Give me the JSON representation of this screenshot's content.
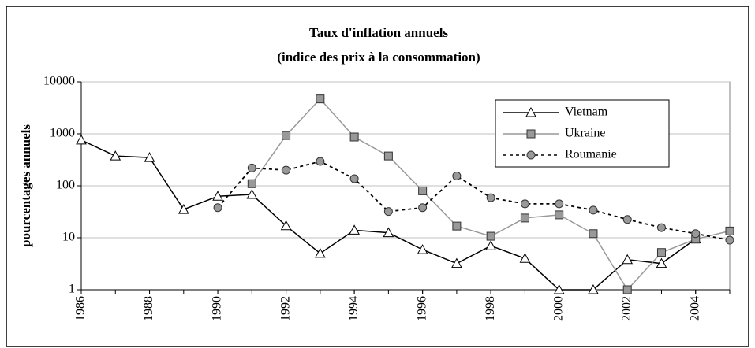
{
  "chart_data": {
    "type": "line",
    "title": "Taux d'inflation annuels",
    "subtitle": "(indice des prix à la consommation)",
    "y_label": "pourcentages annuels",
    "x": [
      1986,
      1987,
      1988,
      1989,
      1990,
      1991,
      1992,
      1993,
      1994,
      1995,
      1996,
      1997,
      1998,
      1999,
      2000,
      2001,
      2002,
      2003,
      2004,
      2005
    ],
    "series": [
      {
        "name": "Vietnam",
        "color": "#000000",
        "marker": "triangle",
        "dashed": false,
        "values": [
          760,
          375,
          350,
          35,
          63,
          68,
          17,
          5,
          14,
          12.5,
          5.9,
          3.2,
          7,
          4,
          1,
          1,
          3.8,
          3.2,
          9.5,
          null
        ]
      },
      {
        "name": "Ukraine",
        "color": "#999999",
        "marker": "square",
        "dashed": false,
        "values": [
          null,
          null,
          null,
          null,
          null,
          110,
          930,
          4700,
          870,
          375,
          80,
          16.8,
          10.7,
          24,
          27.6,
          12,
          1,
          5.2,
          9.4,
          13.5
        ]
      },
      {
        "name": "Roumanie",
        "color": "#000000",
        "marker": "circle",
        "dashed": true,
        "values": [
          null,
          null,
          null,
          null,
          38,
          220,
          200,
          295,
          137,
          32,
          38,
          155,
          59,
          45,
          45,
          34,
          22.5,
          15.7,
          12,
          9
        ]
      }
    ],
    "xlim": [
      1986,
      2005
    ],
    "xticks": [
      1986,
      1988,
      1990,
      1992,
      1994,
      1996,
      1998,
      2000,
      2002,
      2004
    ],
    "ylim": [
      1,
      10000
    ],
    "yticks": [
      1,
      10,
      100,
      1000,
      10000
    ],
    "log_scale": true,
    "grid": true,
    "legend": "top-right"
  }
}
